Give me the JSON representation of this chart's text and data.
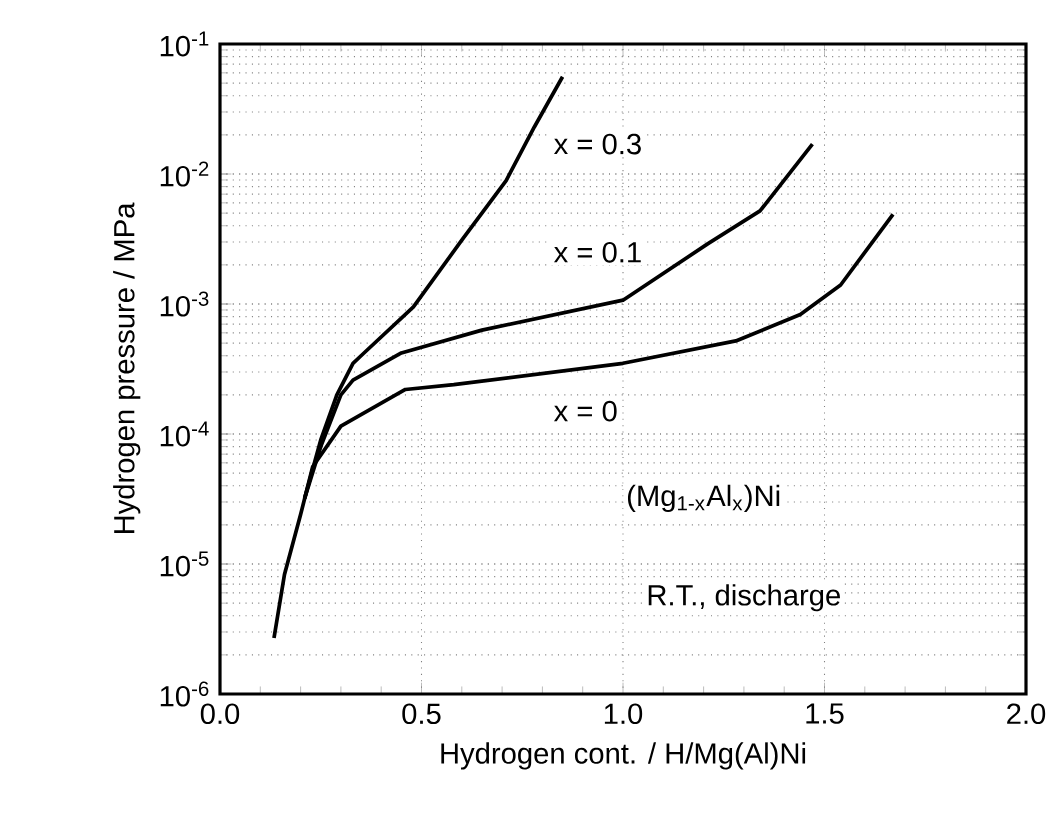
{
  "chart_data": {
    "type": "line",
    "xlabel": "Hydrogen cont.  /  H/Mg(Al)Ni",
    "ylabel": "Hydrogen pressure  /  MPa",
    "log": "y",
    "grid": true,
    "marker": "none",
    "line_style": "solid",
    "xlim": [
      0,
      2
    ],
    "xticks": [
      {
        "value": 0,
        "label": "0.0"
      },
      {
        "value": 0.5,
        "label": "0.5"
      },
      {
        "value": 1,
        "label": "1.0"
      },
      {
        "value": 1.5,
        "label": "1.5"
      },
      {
        "value": 2,
        "label": "2.0"
      }
    ],
    "ylim": [
      1e-06,
      0.1
    ],
    "yticks": [
      {
        "value": 1e-06,
        "label": "10$^{-6}$"
      },
      {
        "value": 1e-05,
        "label": "10$^{-5}$"
      },
      {
        "value": 0.0001,
        "label": "10$^{-4}$"
      },
      {
        "value": 0.001,
        "label": "10$^{-3}$"
      },
      {
        "value": 0.01,
        "label": "10$^{-2}$"
      },
      {
        "value": 0.1,
        "label": "10$^{-1}$"
      }
    ],
    "annotations": [
      "(Mg$_{1-x}$Al$_{x}$)Ni",
      "R.T., discharge"
    ],
    "series": [
      {
        "name": "x = 0.3",
        "color": "#000000",
        "x": [
          0.21,
          0.25,
          0.29,
          0.33,
          0.35,
          0.48,
          0.6,
          0.71,
          0.78,
          0.85
        ],
        "values": [
          3.2e-05,
          9e-05,
          0.0002,
          0.00035,
          0.0004,
          0.00095,
          0.0031,
          0.0089,
          0.023,
          0.056
        ]
      },
      {
        "name": "x = 0.1",
        "color": "#000000",
        "x": [
          0.21,
          0.25,
          0.3,
          0.33,
          0.45,
          0.65,
          1.0,
          1.21,
          1.34,
          1.47
        ],
        "values": [
          3.2e-05,
          8e-05,
          0.0002,
          0.00026,
          0.00042,
          0.00063,
          0.00107,
          0.0029,
          0.0052,
          0.017
        ]
      },
      {
        "name": "x = 0",
        "color": "#000000",
        "x": [
          0.134,
          0.16,
          0.2,
          0.23,
          0.3,
          0.46,
          0.58,
          1.0,
          1.28,
          1.44,
          1.54,
          1.67
        ],
        "values": [
          2.7e-06,
          8.3e-06,
          2.4e-05,
          5.6e-05,
          0.000115,
          0.00022,
          0.00024,
          0.00035,
          0.00052,
          0.00083,
          0.0014,
          0.0049
        ]
      }
    ]
  }
}
